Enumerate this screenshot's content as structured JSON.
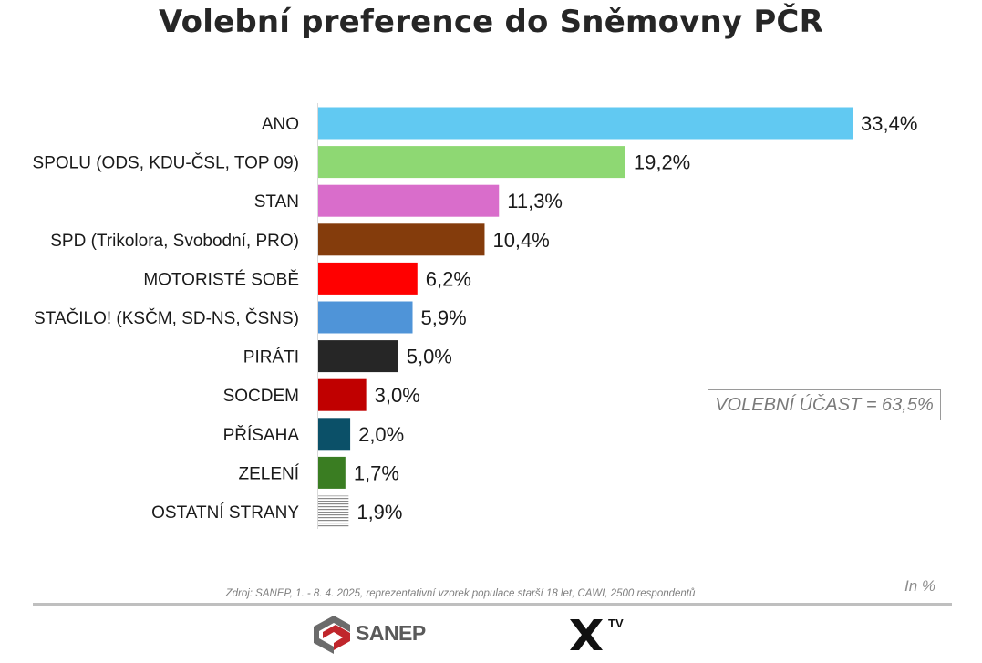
{
  "title": "Volební preference do Sněmovny PČR",
  "chart_data": {
    "type": "bar",
    "orientation": "horizontal",
    "title": "Volební preference do Sněmovny PČR",
    "categories": [
      "ANO",
      "SPOLU (ODS, KDU-ČSL, TOP 09)",
      "STAN",
      "SPD (Trikolora, Svobodní, PRO)",
      "MOTORISTÉ SOBĚ",
      "STAČILO! (KSČM, SD-NS, ČSNS)",
      "PIRÁTI",
      "SOCDEM",
      "PŘÍSAHA",
      "ZELENÍ",
      "OSTATNÍ STRANY"
    ],
    "values": [
      33.4,
      19.2,
      11.3,
      10.4,
      6.2,
      5.9,
      5.0,
      3.0,
      2.0,
      1.7,
      1.9
    ],
    "value_labels": [
      "33,4%",
      "19,2%",
      "11,3%",
      "10,4%",
      "6,2%",
      "5,9%",
      "5,0%",
      "3,0%",
      "2,0%",
      "1,7%",
      "1,9%"
    ],
    "colors": [
      "#61c9f2",
      "#8ed873",
      "#d96dcb",
      "#843c0c",
      "#ff0000",
      "#4f94d8",
      "#262626",
      "#c00000",
      "#0b5068",
      "#3a7d22",
      "hatched-gray"
    ],
    "xlim": [
      0,
      33.4
    ],
    "grid": false,
    "legend": "none",
    "unit": "In %"
  },
  "turnout": "VOLEBNÍ ÚČAST = 63,5%",
  "unit_label": "In %",
  "source": "Zdroj: SANEP, 1. - 8. 4. 2025, reprezentativní vzorek populace starší 18 let, CAWI, 2500 respondentů",
  "logos": {
    "sanep": "SANEP",
    "xtv": "TV"
  }
}
